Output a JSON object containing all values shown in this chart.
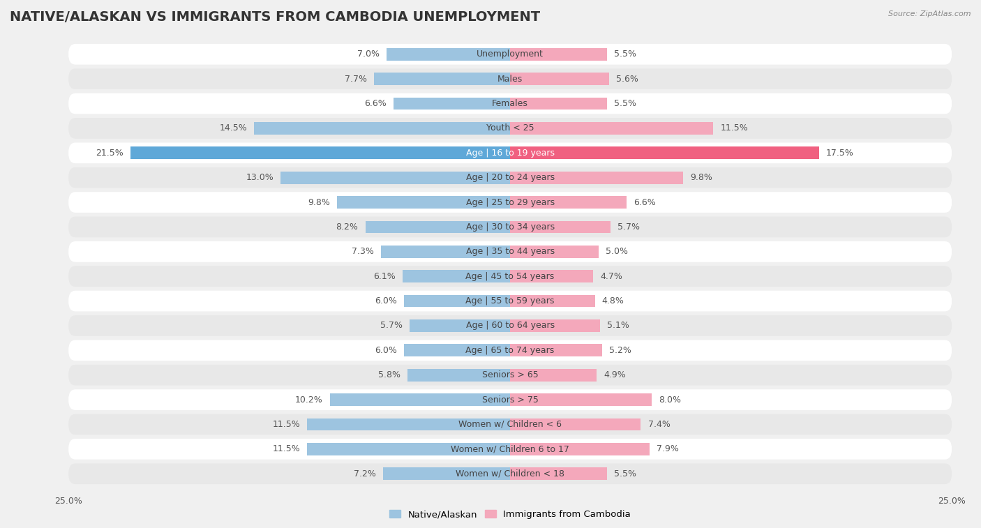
{
  "title": "NATIVE/ALASKAN VS IMMIGRANTS FROM CAMBODIA UNEMPLOYMENT",
  "source": "Source: ZipAtlas.com",
  "categories": [
    "Unemployment",
    "Males",
    "Females",
    "Youth < 25",
    "Age | 16 to 19 years",
    "Age | 20 to 24 years",
    "Age | 25 to 29 years",
    "Age | 30 to 34 years",
    "Age | 35 to 44 years",
    "Age | 45 to 54 years",
    "Age | 55 to 59 years",
    "Age | 60 to 64 years",
    "Age | 65 to 74 years",
    "Seniors > 65",
    "Seniors > 75",
    "Women w/ Children < 6",
    "Women w/ Children 6 to 17",
    "Women w/ Children < 18"
  ],
  "native_values": [
    7.0,
    7.7,
    6.6,
    14.5,
    21.5,
    13.0,
    9.8,
    8.2,
    7.3,
    6.1,
    6.0,
    5.7,
    6.0,
    5.8,
    10.2,
    11.5,
    11.5,
    7.2
  ],
  "cambodia_values": [
    5.5,
    5.6,
    5.5,
    11.5,
    17.5,
    9.8,
    6.6,
    5.7,
    5.0,
    4.7,
    4.8,
    5.1,
    5.2,
    4.9,
    8.0,
    7.4,
    7.9,
    5.5
  ],
  "native_color": "#9dc4e0",
  "cambodia_color": "#f4a8bb",
  "native_color_highlight": "#5fa8d8",
  "cambodia_color_highlight": "#f06080",
  "axis_max": 25.0,
  "bg_color": "#f0f0f0",
  "row_color_white": "#ffffff",
  "row_color_gray": "#e8e8e8",
  "label_native": "Native/Alaskan",
  "label_cambodia": "Immigrants from Cambodia",
  "title_fontsize": 14,
  "label_fontsize": 9,
  "value_fontsize": 9
}
